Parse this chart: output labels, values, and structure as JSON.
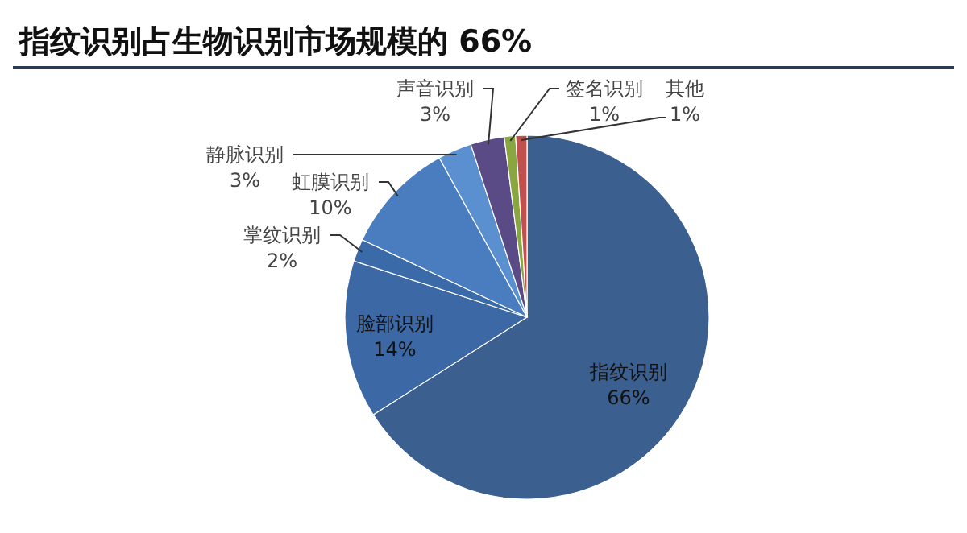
{
  "chart_data": {
    "type": "pie",
    "title": "指纹识别占生物识别市场规模的 66%",
    "categories": [
      "指纹识别",
      "脸部识别",
      "掌纹识别",
      "虹膜识别",
      "静脉识别",
      "声音识别",
      "签名识别",
      "其他"
    ],
    "values": [
      66,
      14,
      2,
      10,
      3,
      3,
      1,
      1
    ],
    "colors": [
      "#3b5f8f",
      "#3c68a6",
      "#3a6aa8",
      "#4a7dc0",
      "#5a8fd0",
      "#5a4a86",
      "#8aa640",
      "#c0504d"
    ],
    "value_labels": [
      "66%",
      "14%",
      "2%",
      "10%",
      "3%",
      "3%",
      "1%",
      "1%"
    ]
  }
}
